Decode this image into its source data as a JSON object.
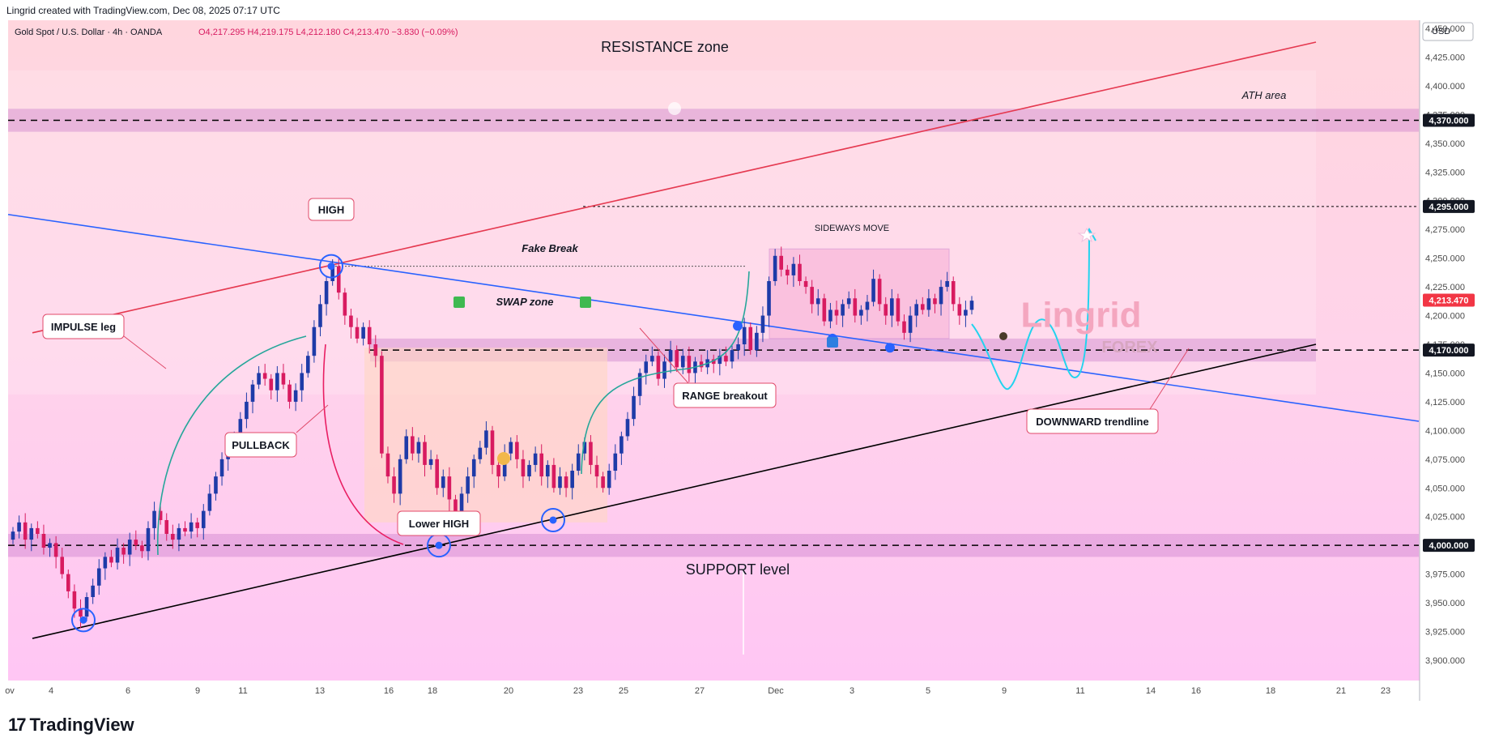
{
  "header": {
    "created_by": "Lingrid created with TradingView.com, Dec 08, 2025 07:17 UTC",
    "symbol_line": "Gold Spot / U.S. Dollar · 4h · OANDA",
    "ohlc": "O4,217.295  H4,219.175  L4,212.180  C4,213.470  −3.830 (−0.09%)"
  },
  "footer": {
    "brand": "TradingView"
  },
  "currency": "USD",
  "colors": {
    "bull": "#1e3ba8",
    "bear": "#d81b60",
    "resistance": "#e53950",
    "trend": "#2962ff",
    "support_line": "#000000",
    "cyan": "#22d3ee",
    "green": "#26a69a"
  },
  "chart_data": {
    "type": "candlestick",
    "title": "",
    "ylabel": "USD",
    "ylim": [
      3900,
      4460
    ],
    "y_ticks": [
      "4,450.000",
      "4,425.000",
      "4,400.000",
      "4,375.000",
      "4,350.000",
      "4,325.000",
      "4,300.000",
      "4,275.000",
      "4,250.000",
      "4,225.000",
      "4,200.000",
      "4,175.000",
      "4,150.000",
      "4,125.000",
      "4,100.000",
      "4,075.000",
      "4,050.000",
      "4,025.000",
      "4,000.000",
      "3,975.000",
      "3,950.000",
      "3,925.000",
      "3,900.000"
    ],
    "x_ticks": [
      "ov",
      "4",
      "6",
      "9",
      "11",
      "13",
      "16",
      "18",
      "20",
      "23",
      "25",
      "27",
      "Dec",
      "3",
      "5",
      "9",
      "11",
      "14",
      "16",
      "18",
      "21",
      "23"
    ],
    "price_labels": [
      {
        "value": 4370,
        "label": "4,370.000"
      },
      {
        "value": 4295,
        "label": "4,295.000"
      },
      {
        "value": 4213.47,
        "label": "4,213.470",
        "current": true
      },
      {
        "value": 4170,
        "label": "4,170.000"
      },
      {
        "value": 4000,
        "label": "4,000.000"
      }
    ],
    "annotations": {
      "resistance_zone": "RESISTANCE zone",
      "ath_area": "ATH area",
      "high": "HIGH",
      "fake_break": "Fake Break",
      "swap_zone": "SWAP zone",
      "sideways_move": "SIDEWAYS MOVE",
      "impulse_leg": "IMPULSE leg",
      "pullback": "PULLBACK",
      "lower_high": "Lower HIGH",
      "range_breakout": "RANGE breakout",
      "downward_trendline": "DOWNWARD trendline",
      "support_level": "SUPPORT level",
      "watermark_top": "Lingrid",
      "watermark_bottom": "FOREX"
    },
    "series": [
      {
        "name": "",
        "type": "candles",
        "closes": [
          4012,
          4020,
          4005,
          4015,
          4010,
          3998,
          4002,
          3990,
          3975,
          3960,
          3945,
          3938,
          3955,
          3965,
          3980,
          3990,
          3985,
          3998,
          3992,
          4005,
          4000,
          3995,
          4015,
          4030,
          4022,
          4010,
          4005,
          4015,
          4012,
          4020,
          4015,
          4030,
          4045,
          4060,
          4075,
          4085,
          4095,
          4110,
          4125,
          4140,
          4150,
          4145,
          4135,
          4150,
          4140,
          4125,
          4135,
          4150,
          4165,
          4190,
          4210,
          4230,
          4243,
          4220,
          4200,
          4190,
          4180,
          4190,
          4175,
          4165,
          4080,
          4060,
          4045,
          4075,
          4095,
          4080,
          4090,
          4070,
          4075,
          4050,
          4060,
          4040,
          4030,
          4045,
          4060,
          4075,
          4085,
          4100,
          4070,
          4060,
          4080,
          4090,
          4075,
          4060,
          4070,
          4080,
          4060,
          4070,
          4050,
          4060,
          4050,
          4065,
          4080,
          4090,
          4070,
          4060,
          4050,
          4065,
          4080,
          4095,
          4110,
          4130,
          4150,
          4160,
          4165,
          4145,
          4160,
          4170,
          4155,
          4165,
          4150,
          4160,
          4155,
          4162,
          4158,
          4165,
          4160,
          4170,
          4175,
          4190,
          4170,
          4185,
          4200,
          4230,
          4252,
          4240,
          4235,
          4245,
          4230,
          4225,
          4210,
          4215,
          4195,
          4205,
          4200,
          4210,
          4215,
          4200,
          4205,
          4212,
          4232,
          4210,
          4200,
          4215,
          4195,
          4185,
          4200,
          4210,
          4205,
          4215,
          4210,
          4225,
          4230,
          4210,
          4200,
          4205,
          4213
        ]
      }
    ],
    "zones": [
      {
        "name": "ATH area",
        "from": 4360,
        "to": 4380
      },
      {
        "name": "SWAP zone",
        "from": 4160,
        "to": 4180
      },
      {
        "name": "SUPPORT level",
        "from": 3990,
        "to": 4010
      }
    ]
  }
}
